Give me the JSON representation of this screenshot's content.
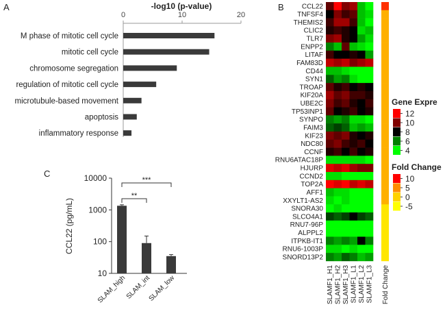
{
  "panels": {
    "A": "A",
    "B": "B",
    "C": "C"
  },
  "chart_data": [
    {
      "type": "bar",
      "orientation": "horizontal",
      "panel": "A",
      "title": "-log10 (p-value)",
      "xlim": [
        0,
        20
      ],
      "xticks": [
        "0",
        "10",
        "20"
      ],
      "categories": [
        "M phase of mitotic cell cycle",
        "mitotic cell cycle",
        "chromosome segregation",
        "regulation of mitotic cell cycle",
        "microtubule-based movement",
        "apoptosis",
        "inflammatory response"
      ],
      "values": [
        15.5,
        14.6,
        9.1,
        5.6,
        3.1,
        2.3,
        1.4
      ],
      "grid": false
    },
    {
      "type": "heatmap",
      "panel": "B",
      "rows": [
        "CCL22",
        "TNFSF4",
        "THEMIS2",
        "CLIC2",
        "TLR7",
        "ENPP2",
        "LITAF",
        "FAM83D",
        "CD44",
        "SYN1",
        "TROAP",
        "KIF20A",
        "UBE2C",
        "TP53INP1",
        "SYNPO",
        "FAIM3",
        "KIF23",
        "NDC80",
        "CCNF",
        "RNU6ATAC18P",
        "HJURP",
        "CCND2",
        "TOP2A",
        "AFF1",
        "XXYLT1-AS2",
        "SNORA30",
        "SLCO4A1",
        "RNU7-96P",
        "ALPPL2",
        "ITPKB-IT1",
        "RNU6-1003P",
        "SNORD13P2"
      ],
      "columns": [
        "SLAMF1_H1",
        "SLAMF1_H2",
        "SLAMF1_H3",
        "SLAMF1_L1",
        "SLAMF1_L2",
        "SLAMF1_L3"
      ],
      "extra_column_label": "Fold Change",
      "values": [
        [
          9.5,
          12,
          10,
          10.5,
          5,
          4
        ],
        [
          8,
          10,
          9,
          9.5,
          5,
          4.5
        ],
        [
          9,
          10.5,
          10.5,
          9,
          5,
          4
        ],
        [
          8.5,
          9,
          8.5,
          8,
          4.5,
          5
        ],
        [
          10,
          10.5,
          8.5,
          8,
          5.5,
          4.5
        ],
        [
          6,
          5,
          9.5,
          5,
          4.5,
          4
        ],
        [
          9,
          8,
          8,
          8.5,
          8,
          5.5
        ],
        [
          11,
          10.5,
          11,
          10,
          10.5,
          11
        ],
        [
          5,
          5,
          4.5,
          4,
          4,
          4
        ],
        [
          6.5,
          5.5,
          6,
          4.5,
          4,
          4
        ],
        [
          9.5,
          8.5,
          9,
          8,
          8.5,
          8
        ],
        [
          10.5,
          9.5,
          10,
          9,
          9,
          8.5
        ],
        [
          10,
          9,
          9.5,
          8.5,
          8,
          9
        ],
        [
          9.5,
          8,
          8.5,
          9,
          8,
          8.5
        ],
        [
          6,
          5.5,
          6,
          4.5,
          4.5,
          4
        ],
        [
          6.5,
          7,
          6.5,
          5,
          5.5,
          5
        ],
        [
          10,
          9.5,
          10,
          8.5,
          8,
          8.5
        ],
        [
          9.5,
          10,
          9,
          8.5,
          9,
          8
        ],
        [
          8.5,
          9,
          8,
          9,
          8,
          8.5
        ],
        [
          4.5,
          4.5,
          4.5,
          4.5,
          4.5,
          4
        ],
        [
          11.5,
          11,
          11.5,
          10.5,
          10,
          10
        ],
        [
          4.5,
          4.5,
          4,
          4,
          4,
          4
        ],
        [
          12,
          11.5,
          12,
          11,
          11.5,
          11
        ],
        [
          5,
          4.5,
          4.5,
          4,
          4,
          4
        ],
        [
          4.5,
          4,
          4.5,
          4,
          4,
          4
        ],
        [
          4,
          4.5,
          4,
          4,
          4,
          4
        ],
        [
          7,
          6.5,
          7,
          8,
          7,
          6.5
        ],
        [
          4,
          4,
          4,
          4,
          4,
          4
        ],
        [
          4,
          4,
          4,
          4,
          4,
          4
        ],
        [
          6,
          5.5,
          6,
          5.5,
          8,
          6
        ],
        [
          4.5,
          4.5,
          4,
          4.5,
          4,
          4
        ],
        [
          6,
          5.5,
          6.5,
          6,
          5,
          5.5
        ]
      ],
      "fold_change": [
        10,
        3,
        3,
        3,
        3,
        3,
        3,
        3,
        3,
        3,
        3,
        3,
        3,
        3,
        3,
        3,
        3,
        3,
        3,
        3,
        3,
        3,
        3,
        3,
        3,
        -3,
        -3,
        -3,
        -3,
        -3,
        -3,
        -3
      ],
      "legend_gene_expression": {
        "title": "Gene Expre",
        "ticks": [
          "12",
          "10",
          "8",
          "6",
          "4"
        ],
        "colors": [
          "#ff0000",
          "#800000",
          "#000000",
          "#008000",
          "#00ff00"
        ]
      },
      "legend_fold_change": {
        "title": "Fold Change",
        "ticks": [
          "10",
          "5",
          "0",
          "-5"
        ],
        "colors": [
          "#ff0000",
          "#ff8c00",
          "#ffd200",
          "#ffff00"
        ]
      }
    },
    {
      "type": "bar",
      "panel": "C",
      "ylabel": "CCL22 (pg/mL)",
      "yscale": "log",
      "ylim": [
        10,
        10000
      ],
      "yticks": [
        "10",
        "100",
        "1000",
        "10000"
      ],
      "categories": [
        "SLAM_high",
        "SLAM_int",
        "SLAM_low"
      ],
      "values": [
        1350,
        90,
        35
      ],
      "errors": [
        100,
        60,
        4
      ],
      "significance": [
        {
          "from": 0,
          "to": 1,
          "label": "**"
        },
        {
          "from": 0,
          "to": 2,
          "label": "***"
        }
      ]
    }
  ]
}
